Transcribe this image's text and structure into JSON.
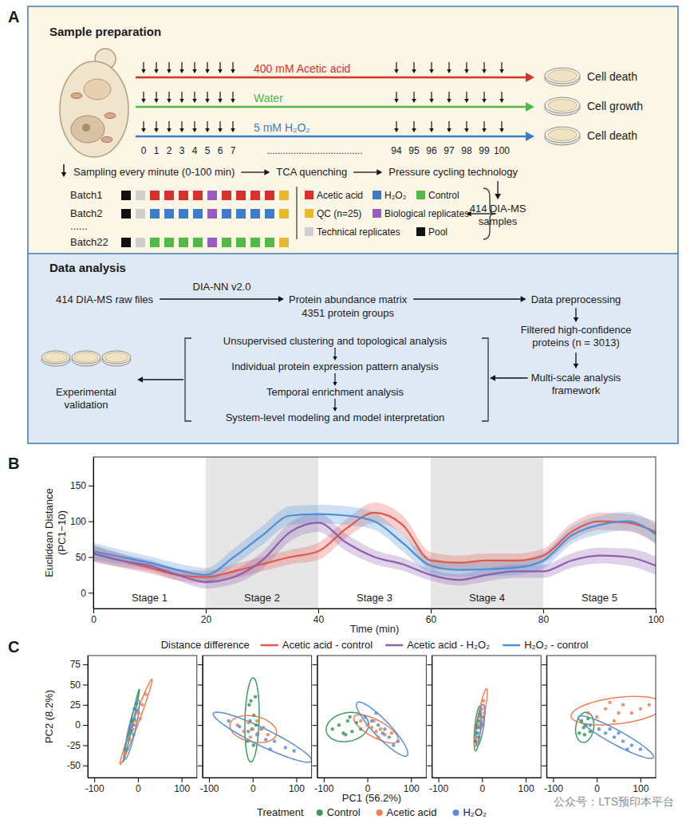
{
  "panel_a": {
    "label": "A",
    "sample_preparation": {
      "title": "Sample preparation",
      "treatments": [
        {
          "label": "400 mM Acetic acid",
          "color": "#d9302c",
          "outcome": "Cell death"
        },
        {
          "label": "Water",
          "color": "#52b848",
          "outcome": "Cell growth"
        },
        {
          "label": "5 mM H₂O₂",
          "color": "#3d7cc9",
          "outcome": "Cell death"
        }
      ],
      "timepoints_start": [
        0,
        1,
        2,
        3,
        4,
        5,
        6,
        7
      ],
      "timepoints_gap": "....................................",
      "timepoints_end": [
        94,
        95,
        96,
        97,
        98,
        99,
        100
      ],
      "workflow": [
        "Sampling every minute (0-100 min)",
        "TCA quenching",
        "Pressure cycling technology"
      ],
      "batches": [
        {
          "label": "Batch1",
          "colors": [
            "#111111",
            "#cfcfcf",
            "#d9302c",
            "#d9302c",
            "#d9302c",
            "#d9302c",
            "#9a5cc0",
            "#d9302c",
            "#d9302c",
            "#d9302c",
            "#d9302c",
            "#e8b92e"
          ]
        },
        {
          "label": "Batch2",
          "colors": [
            "#111111",
            "#cfcfcf",
            "#3d7cc9",
            "#3d7cc9",
            "#3d7cc9",
            "#3d7cc9",
            "#9a5cc0",
            "#3d7cc9",
            "#3d7cc9",
            "#3d7cc9",
            "#3d7cc9",
            "#e8b92e"
          ]
        },
        {
          "label": "Batch22",
          "colors": [
            "#111111",
            "#cfcfcf",
            "#52b848",
            "#52b848",
            "#52b848",
            "#52b848",
            "#9a5cc0",
            "#52b848",
            "#52b848",
            "#52b848",
            "#52b848",
            "#e8b92e"
          ]
        }
      ],
      "batch_gap": "......",
      "well_types": [
        {
          "label": "Acetic acid",
          "color": "#d9302c"
        },
        {
          "label": "H₂O₂",
          "color": "#3d7cc9"
        },
        {
          "label": "Control",
          "color": "#52b848"
        },
        {
          "label": "QC (n=25)",
          "color": "#e8b92e"
        },
        {
          "label": "Biological replicates",
          "color": "#9a5cc0"
        },
        {
          "label": "Technical replicates",
          "color": "#cfcfcf"
        },
        {
          "label": "Pool",
          "color": "#111111"
        }
      ],
      "output": [
        "414 DIA-MS",
        "samples"
      ]
    },
    "data_analysis": {
      "title": "Data analysis",
      "input": "414 DIA-MS raw files",
      "tool": "DIA-NN v2.0",
      "matrix": [
        "Protein abundance matrix",
        "4351 protein groups"
      ],
      "preprocessing": "Data preprocessing",
      "filtered": [
        "Filtered high-confidence",
        "proteins (n = 3013)"
      ],
      "framework": [
        "Multi-scale analysis",
        "framework"
      ],
      "steps": [
        "Unsupervised clustering and topological analysis",
        "Individual protein expression pattern analysis",
        "Temporal enrichment analysis",
        "System-level modeling and model interpretation"
      ],
      "validation": [
        "Experimental",
        "validation"
      ]
    }
  },
  "chart_data": [
    {
      "type": "line",
      "label": "B",
      "x_label": "Time (min)",
      "y_label": [
        "Euclidean Distance",
        "(PC1−10)"
      ],
      "xlim": [
        0,
        100
      ],
      "ylim": [
        -22,
        190
      ],
      "xticks": [
        0,
        20,
        40,
        60,
        80,
        100
      ],
      "yticks": [
        0,
        50,
        100,
        150
      ],
      "grid": false,
      "legend": "bottom",
      "legend_title": "Distance difference",
      "bands": [
        [
          20,
          40
        ],
        [
          60,
          80
        ]
      ],
      "annotations": [
        {
          "text": "Stage 1",
          "x": [
            0,
            20
          ]
        },
        {
          "text": "Stage 2",
          "x": [
            20,
            40
          ]
        },
        {
          "text": "Stage 3",
          "x": [
            40,
            60
          ]
        },
        {
          "text": "Stage 4",
          "x": [
            60,
            80
          ]
        },
        {
          "text": "Stage 5",
          "x": [
            80,
            100
          ]
        }
      ],
      "x": [
        0,
        5,
        10,
        15,
        20,
        25,
        30,
        35,
        40,
        45,
        50,
        55,
        60,
        65,
        70,
        75,
        80,
        85,
        90,
        95,
        100
      ],
      "series": [
        {
          "name": "Acetic acid - control",
          "color": "#e2574c",
          "values": [
            55,
            45,
            35,
            25,
            22,
            30,
            40,
            50,
            58,
            90,
            112,
            95,
            45,
            42,
            45,
            45,
            52,
            85,
            100,
            98,
            85
          ],
          "lower": [
            43,
            35,
            27,
            17,
            13,
            20,
            30,
            40,
            46,
            77,
            98,
            82,
            33,
            32,
            35,
            35,
            42,
            73,
            88,
            86,
            70
          ],
          "upper": [
            67,
            55,
            43,
            33,
            31,
            40,
            50,
            60,
            70,
            103,
            126,
            108,
            57,
            52,
            55,
            55,
            62,
            97,
            112,
            110,
            100
          ]
        },
        {
          "name": "Acetic acid - H₂O₂",
          "color": "#8b5fae",
          "values": [
            55,
            45,
            38,
            25,
            15,
            22,
            45,
            85,
            98,
            70,
            50,
            40,
            25,
            18,
            25,
            30,
            30,
            45,
            52,
            50,
            38
          ],
          "lower": [
            44,
            36,
            30,
            17,
            6,
            12,
            33,
            72,
            85,
            58,
            40,
            31,
            17,
            10,
            16,
            21,
            21,
            35,
            41,
            38,
            25
          ],
          "upper": [
            66,
            54,
            46,
            33,
            24,
            32,
            57,
            98,
            111,
            82,
            60,
            49,
            33,
            26,
            34,
            39,
            39,
            55,
            63,
            62,
            51
          ]
        },
        {
          "name": "H₂O₂ - control",
          "color": "#4a90d9",
          "values": [
            58,
            50,
            42,
            32,
            25,
            50,
            80,
            108,
            110,
            108,
            100,
            70,
            38,
            32,
            33,
            35,
            45,
            80,
            95,
            100,
            82
          ],
          "lower": [
            46,
            40,
            33,
            23,
            15,
            38,
            67,
            95,
            97,
            95,
            88,
            58,
            27,
            22,
            23,
            25,
            34,
            68,
            82,
            87,
            68
          ],
          "upper": [
            70,
            60,
            51,
            41,
            35,
            62,
            93,
            121,
            123,
            121,
            112,
            82,
            49,
            42,
            43,
            45,
            56,
            92,
            108,
            113,
            96
          ]
        }
      ]
    },
    {
      "type": "scatter",
      "label": "C",
      "x_label": "PC1 (56.2%)",
      "y_label": "PC2 (8.2%)",
      "xlim": [
        -115,
        135
      ],
      "ylim": [
        -65,
        86
      ],
      "xticks": [
        -100,
        0,
        100
      ],
      "yticks": [
        -50,
        -25,
        0,
        25,
        50,
        75
      ],
      "grid": false,
      "legend": "bottom",
      "legend_title": "Treatment",
      "series": [
        {
          "name": "Control",
          "color": "#3c9a5f",
          "marker": "circle"
        },
        {
          "name": "Acetic acid",
          "color": "#f07f55",
          "marker": "circle"
        },
        {
          "name": "H₂O₂",
          "color": "#5b8ed8",
          "marker": "circle"
        }
      ],
      "panels": [
        {
          "series": [
            {
              "x": [
                -28,
                -22,
                -18,
                -14,
                -12,
                -8,
                -4,
                -16
              ],
              "values": [
                -30,
                -14,
                -10,
                4,
                6,
                20,
                26,
                -6
              ]
            },
            {
              "x": [
                -30,
                -20,
                -12,
                -5,
                2,
                10,
                18,
                -8,
                5
              ],
              "values": [
                -35,
                -15,
                -5,
                5,
                15,
                25,
                38,
                0,
                8
              ]
            },
            {
              "x": [
                -25,
                -20,
                -15,
                -12,
                -8,
                -3,
                -10,
                -18
              ],
              "values": [
                -30,
                -18,
                -8,
                0,
                8,
                18,
                -12,
                -2
              ]
            }
          ]
        },
        {
          "tick_labels": "x",
          "series": [
            {
              "x": [
                -12,
                -8,
                -2,
                3,
                6,
                -6,
                2,
                -4,
                8
              ],
              "values": [
                -20,
                25,
                -5,
                12,
                35,
                5,
                -25,
                30,
                0
              ]
            },
            {
              "x": [
                -35,
                -20,
                -10,
                0,
                12,
                25,
                35,
                -5,
                10
              ],
              "values": [
                0,
                -8,
                3,
                -5,
                -10,
                -3,
                -12,
                -15,
                5
              ]
            },
            {
              "x": [
                -55,
                -30,
                -10,
                10,
                30,
                50,
                75,
                95,
                20,
                40
              ],
              "values": [
                5,
                -2,
                -8,
                -12,
                -18,
                -20,
                -28,
                -32,
                -5,
                -30
              ]
            }
          ]
        },
        {
          "tick_labels": "x",
          "series": [
            {
              "x": [
                -80,
                -65,
                -55,
                -45,
                -35,
                -25,
                -15,
                -50,
                -40
              ],
              "values": [
                -5,
                0,
                -10,
                5,
                -8,
                3,
                -5,
                -12,
                10
              ]
            },
            {
              "x": [
                -15,
                0,
                10,
                20,
                30,
                40,
                55,
                15,
                25
              ],
              "values": [
                5,
                0,
                -3,
                -8,
                -5,
                -12,
                -10,
                5,
                -15
              ]
            },
            {
              "x": [
                -5,
                10,
                25,
                35,
                50,
                70,
                20,
                40,
                60
              ],
              "values": [
                10,
                5,
                0,
                -10,
                -15,
                -20,
                15,
                -5,
                -25
              ]
            }
          ]
        },
        {
          "tick_labels": "x",
          "series": [
            {
              "x": [
                -15,
                -12,
                -10,
                -8,
                -6,
                -13,
                -7
              ],
              "values": [
                -20,
                -10,
                -3,
                5,
                12,
                0,
                -15
              ]
            },
            {
              "x": [
                -12,
                -8,
                -5,
                0,
                3,
                -3,
                5
              ],
              "values": [
                -15,
                0,
                10,
                20,
                30,
                5,
                15
              ]
            },
            {
              "x": [
                -10,
                -6,
                -3,
                0,
                -4,
                -8,
                2
              ],
              "values": [
                -10,
                -3,
                3,
                10,
                15,
                -15,
                0
              ]
            }
          ]
        },
        {
          "tick_labels": "x",
          "series": [
            {
              "x": [
                -40,
                -35,
                -28,
                -25,
                -20,
                -15,
                -30
              ],
              "values": [
                -10,
                5,
                -12,
                0,
                8,
                -8,
                -3
              ]
            },
            {
              "x": [
                -20,
                0,
                20,
                40,
                60,
                80,
                100,
                120,
                50,
                30
              ],
              "values": [
                15,
                10,
                20,
                5,
                25,
                15,
                20,
                25,
                15,
                28
              ]
            },
            {
              "x": [
                -15,
                5,
                20,
                40,
                60,
                80,
                100,
                30,
                70,
                50
              ],
              "values": [
                0,
                -5,
                -10,
                -15,
                -20,
                -25,
                -30,
                -5,
                -30,
                -10
              ]
            }
          ]
        }
      ]
    }
  ],
  "watermark": "公众号：LTS预印本平台"
}
